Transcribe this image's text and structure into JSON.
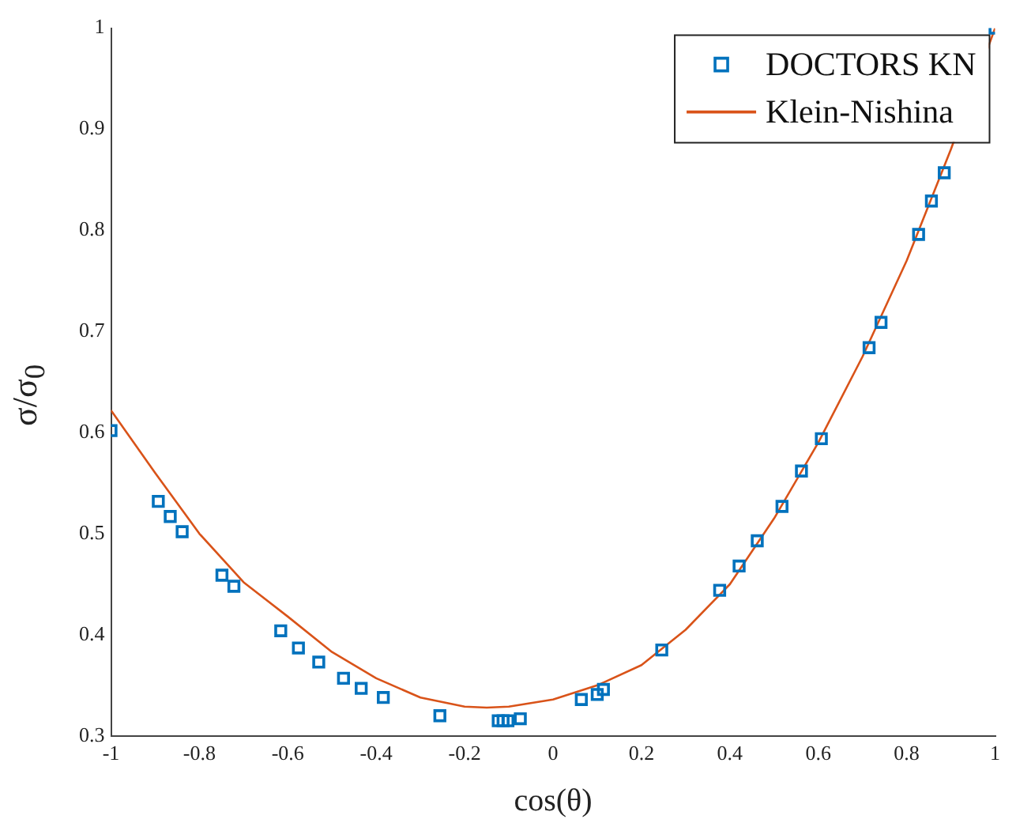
{
  "chart_data": {
    "type": "scatter",
    "xlabel": "cos(θ)",
    "ylabel": "σ/σ$_{0}$",
    "xlim": [
      -1,
      1
    ],
    "ylim": [
      0.3,
      1
    ],
    "xticks": [
      -1,
      -0.8,
      -0.6,
      -0.4,
      -0.2,
      0,
      0.2,
      0.4,
      0.6,
      0.8,
      1
    ],
    "yticks": [
      0.3,
      0.4,
      0.5,
      0.6,
      0.7,
      0.8,
      0.9,
      1
    ],
    "grid": false,
    "legend": "top right",
    "series": [
      {
        "name": "DOCTORS KN",
        "type": "scatter",
        "marker": "square",
        "color": "#0072bd",
        "x": [
          -1,
          -0.893,
          -0.866,
          -0.839,
          -0.749,
          -0.722,
          -0.616,
          -0.576,
          -0.53,
          -0.474,
          -0.434,
          -0.384,
          -0.256,
          -0.124,
          -0.113,
          -0.102,
          -0.074,
          0.064,
          0.1,
          0.114,
          0.246,
          0.377,
          0.421,
          0.462,
          0.518,
          0.562,
          0.607,
          0.715,
          0.742,
          0.827,
          0.856,
          0.885,
          1
        ],
        "values": [
          0.602,
          0.532,
          0.517,
          0.502,
          0.459,
          0.448,
          0.404,
          0.387,
          0.373,
          0.357,
          0.347,
          0.338,
          0.32,
          0.315,
          0.315,
          0.315,
          0.317,
          0.336,
          0.341,
          0.346,
          0.385,
          0.444,
          0.468,
          0.493,
          0.527,
          0.562,
          0.594,
          0.684,
          0.709,
          0.796,
          0.829,
          0.857,
          1
        ]
      },
      {
        "name": "Klein-Nishina",
        "type": "line",
        "marker": "none",
        "line_style": "solid",
        "color": "#d95319",
        "x": [
          -1,
          -0.9,
          -0.8,
          -0.7,
          -0.6,
          -0.5,
          -0.4,
          -0.3,
          -0.2,
          -0.15,
          -0.1,
          0,
          0.1,
          0.2,
          0.3,
          0.4,
          0.5,
          0.6,
          0.7,
          0.8,
          0.9,
          1
        ],
        "values": [
          0.622,
          0.56,
          0.5,
          0.452,
          0.418,
          0.383,
          0.357,
          0.338,
          0.329,
          0.328,
          0.329,
          0.336,
          0.35,
          0.37,
          0.405,
          0.45,
          0.515,
          0.59,
          0.675,
          0.77,
          0.88,
          1
        ]
      }
    ]
  }
}
